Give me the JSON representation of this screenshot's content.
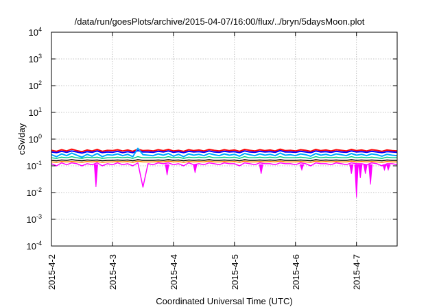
{
  "chart_data": {
    "type": "line",
    "title": "/data/run/goesPlots/archive/2015-04-07/16:00/flux/../bryn/5daysMoon.plot",
    "xlabel": "Coordinated Universal Time (UTC)",
    "ylabel": "cSv/day",
    "yscale": "log",
    "ylim": [
      0.0001,
      10000
    ],
    "xlim": [
      "2015-04-02 00:00",
      "2015-04-07 16:00"
    ],
    "x_ticks": [
      "2015-4-2",
      "2015-4-3",
      "2015-4-4",
      "2015-4-5",
      "2015-4-6",
      "2015-4-7"
    ],
    "y_ticks": [
      {
        "base": "10",
        "exp": "-4"
      },
      {
        "base": "10",
        "exp": "-3"
      },
      {
        "base": "10",
        "exp": "-2"
      },
      {
        "base": "10",
        "exp": "-1"
      },
      {
        "base": "10",
        "exp": "0"
      },
      {
        "base": "10",
        "exp": "1"
      },
      {
        "base": "10",
        "exp": "2"
      },
      {
        "base": "10",
        "exp": "3"
      },
      {
        "base": "10",
        "exp": "4"
      }
    ],
    "grid": true,
    "legend": "none",
    "x_hours": [
      0,
      2,
      4,
      6,
      8,
      10,
      12,
      14,
      16,
      18,
      20,
      22,
      24,
      26,
      28,
      30,
      32,
      34,
      36,
      38,
      40,
      42,
      44,
      46,
      48,
      50,
      52,
      54,
      56,
      58,
      60,
      62,
      64,
      66,
      68,
      70,
      72,
      74,
      76,
      78,
      80,
      82,
      84,
      86,
      88,
      90,
      92,
      94,
      96,
      98,
      100,
      102,
      104,
      106,
      108,
      110,
      112,
      114,
      116,
      118,
      120,
      122,
      124,
      126,
      128,
      130,
      132,
      134,
      136
    ],
    "series": [
      {
        "color": "#ff0000",
        "values": [
          0.38,
          0.35,
          0.4,
          0.36,
          0.42,
          0.37,
          0.34,
          0.39,
          0.36,
          0.41,
          0.35,
          0.38,
          0.37,
          0.4,
          0.36,
          0.39,
          0.35,
          0.42,
          0.37,
          0.38,
          0.36,
          0.4,
          0.37,
          0.41,
          0.36,
          0.38,
          0.35,
          0.4,
          0.37,
          0.39,
          0.36,
          0.41,
          0.38,
          0.36,
          0.4,
          0.37,
          0.39,
          0.35,
          0.41,
          0.38,
          0.36,
          0.4,
          0.37,
          0.39,
          0.36,
          0.42,
          0.37,
          0.38,
          0.36,
          0.4,
          0.38,
          0.35,
          0.41,
          0.37,
          0.39,
          0.36,
          0.4,
          0.38,
          0.36,
          0.41,
          0.37,
          0.39,
          0.36,
          0.4,
          0.38,
          0.35,
          0.39,
          0.37,
          0.36
        ]
      },
      {
        "color": "#0000ff",
        "values": [
          0.33,
          0.31,
          0.35,
          0.32,
          0.36,
          0.33,
          0.3,
          0.34,
          0.32,
          0.36,
          0.31,
          0.33,
          0.32,
          0.35,
          0.31,
          0.34,
          0.31,
          0.37,
          0.33,
          0.33,
          0.32,
          0.35,
          0.33,
          0.36,
          0.32,
          0.34,
          0.31,
          0.35,
          0.33,
          0.34,
          0.32,
          0.36,
          0.33,
          0.32,
          0.35,
          0.33,
          0.34,
          0.31,
          0.36,
          0.33,
          0.32,
          0.35,
          0.33,
          0.34,
          0.32,
          0.37,
          0.33,
          0.33,
          0.32,
          0.35,
          0.33,
          0.31,
          0.36,
          0.33,
          0.34,
          0.32,
          0.35,
          0.33,
          0.32,
          0.36,
          0.33,
          0.34,
          0.32,
          0.35,
          0.33,
          0.31,
          0.34,
          0.33,
          0.32
        ]
      },
      {
        "color": "#00aaff",
        "values": [
          0.26,
          0.22,
          0.28,
          0.24,
          0.3,
          0.25,
          0.21,
          0.27,
          0.23,
          0.29,
          0.22,
          0.26,
          0.25,
          0.28,
          0.24,
          0.27,
          0.22,
          0.45,
          0.26,
          0.25,
          0.24,
          0.28,
          0.25,
          0.29,
          0.23,
          0.27,
          0.22,
          0.28,
          0.25,
          0.27,
          0.24,
          0.29,
          0.26,
          0.24,
          0.28,
          0.25,
          0.27,
          0.23,
          0.29,
          0.26,
          0.24,
          0.28,
          0.25,
          0.27,
          0.24,
          0.3,
          0.25,
          0.26,
          0.24,
          0.28,
          0.26,
          0.23,
          0.29,
          0.25,
          0.27,
          0.24,
          0.28,
          0.26,
          0.24,
          0.29,
          0.25,
          0.27,
          0.24,
          0.28,
          0.26,
          0.23,
          0.27,
          0.25,
          0.24
        ]
      },
      {
        "color": "#00cc88",
        "values": [
          0.2,
          0.19,
          0.21,
          0.2,
          0.22,
          0.2,
          0.19,
          0.21,
          0.2,
          0.21,
          0.19,
          0.2,
          0.2,
          0.21,
          0.2,
          0.21,
          0.19,
          0.22,
          0.2,
          0.2,
          0.2,
          0.21,
          0.2,
          0.22,
          0.2,
          0.21,
          0.19,
          0.21,
          0.2,
          0.21,
          0.2,
          0.22,
          0.2,
          0.2,
          0.21,
          0.2,
          0.21,
          0.19,
          0.22,
          0.2,
          0.2,
          0.21,
          0.2,
          0.21,
          0.2,
          0.22,
          0.2,
          0.2,
          0.2,
          0.21,
          0.2,
          0.19,
          0.22,
          0.2,
          0.21,
          0.2,
          0.21,
          0.2,
          0.2,
          0.22,
          0.2,
          0.21,
          0.2,
          0.21,
          0.2,
          0.19,
          0.21,
          0.2,
          0.2
        ]
      },
      {
        "color": "#000000",
        "values": [
          0.16,
          0.155,
          0.165,
          0.16,
          0.17,
          0.16,
          0.155,
          0.165,
          0.16,
          0.165,
          0.155,
          0.16,
          0.16,
          0.165,
          0.16,
          0.165,
          0.155,
          0.17,
          0.16,
          0.16,
          0.16,
          0.165,
          0.16,
          0.17,
          0.16,
          0.165,
          0.155,
          0.165,
          0.16,
          0.165,
          0.16,
          0.17,
          0.16,
          0.16,
          0.165,
          0.16,
          0.165,
          0.155,
          0.17,
          0.16,
          0.16,
          0.165,
          0.16,
          0.165,
          0.16,
          0.17,
          0.16,
          0.16,
          0.16,
          0.165,
          0.16,
          0.155,
          0.17,
          0.16,
          0.165,
          0.16,
          0.165,
          0.16,
          0.16,
          0.17,
          0.16,
          0.165,
          0.16,
          0.165,
          0.16,
          0.155,
          0.165,
          0.16,
          0.16
        ]
      },
      {
        "color": "#ff8800",
        "values": [
          0.14,
          0.135,
          0.145,
          0.14,
          0.145,
          0.14,
          0.135,
          0.145,
          0.14,
          0.145,
          0.135,
          0.14,
          0.14,
          0.145,
          0.14,
          0.145,
          0.135,
          0.15,
          0.14,
          0.14,
          0.14,
          0.145,
          0.14,
          0.15,
          0.14,
          0.145,
          0.135,
          0.145,
          0.14,
          0.145,
          0.14,
          0.15,
          0.14,
          0.14,
          0.145,
          0.14,
          0.145,
          0.135,
          0.15,
          0.14,
          0.14,
          0.145,
          0.14,
          0.145,
          0.14,
          0.15,
          0.14,
          0.14,
          0.14,
          0.145,
          0.14,
          0.135,
          0.15,
          0.14,
          0.145,
          0.14,
          0.145,
          0.14,
          0.14,
          0.15,
          0.14,
          0.145,
          0.14,
          0.145,
          0.14,
          0.135,
          0.145,
          0.14,
          0.14
        ]
      },
      {
        "color": "#ff00ff",
        "values": [
          0.12,
          0.1,
          0.13,
          0.11,
          0.13,
          0.12,
          0.1,
          0.12,
          0.11,
          0.13,
          0.1,
          0.12,
          0.11,
          0.13,
          0.11,
          0.12,
          0.1,
          0.13,
          0.016,
          0.12,
          0.11,
          0.13,
          0.12,
          0.13,
          0.11,
          0.12,
          0.1,
          0.13,
          0.11,
          0.12,
          0.11,
          0.13,
          0.12,
          0.11,
          0.13,
          0.12,
          0.12,
          0.1,
          0.13,
          0.12,
          0.11,
          0.13,
          0.12,
          0.12,
          0.11,
          0.13,
          0.12,
          0.12,
          0.11,
          0.13,
          0.12,
          0.1,
          0.13,
          0.12,
          0.12,
          0.11,
          0.13,
          0.12,
          0.11,
          0.13,
          0.12,
          0.12,
          0.11,
          0.13,
          0.12,
          0.1,
          0.12,
          0.12,
          0.11
        ]
      }
    ],
    "dips": [
      {
        "hour": 17.5,
        "value": 0.016
      },
      {
        "hour": 45.5,
        "value": 0.045
      },
      {
        "hour": 56.5,
        "value": 0.055
      },
      {
        "hour": 82.5,
        "value": 0.05
      },
      {
        "hour": 98.5,
        "value": 0.07
      },
      {
        "hour": 118.0,
        "value": 0.05
      },
      {
        "hour": 120.0,
        "value": 0.0065
      },
      {
        "hour": 121.5,
        "value": 0.035
      },
      {
        "hour": 123.5,
        "value": 0.05
      },
      {
        "hour": 125.5,
        "value": 0.02
      },
      {
        "hour": 131.0,
        "value": 0.07
      },
      {
        "hour": 132.5,
        "value": 0.07
      }
    ]
  }
}
